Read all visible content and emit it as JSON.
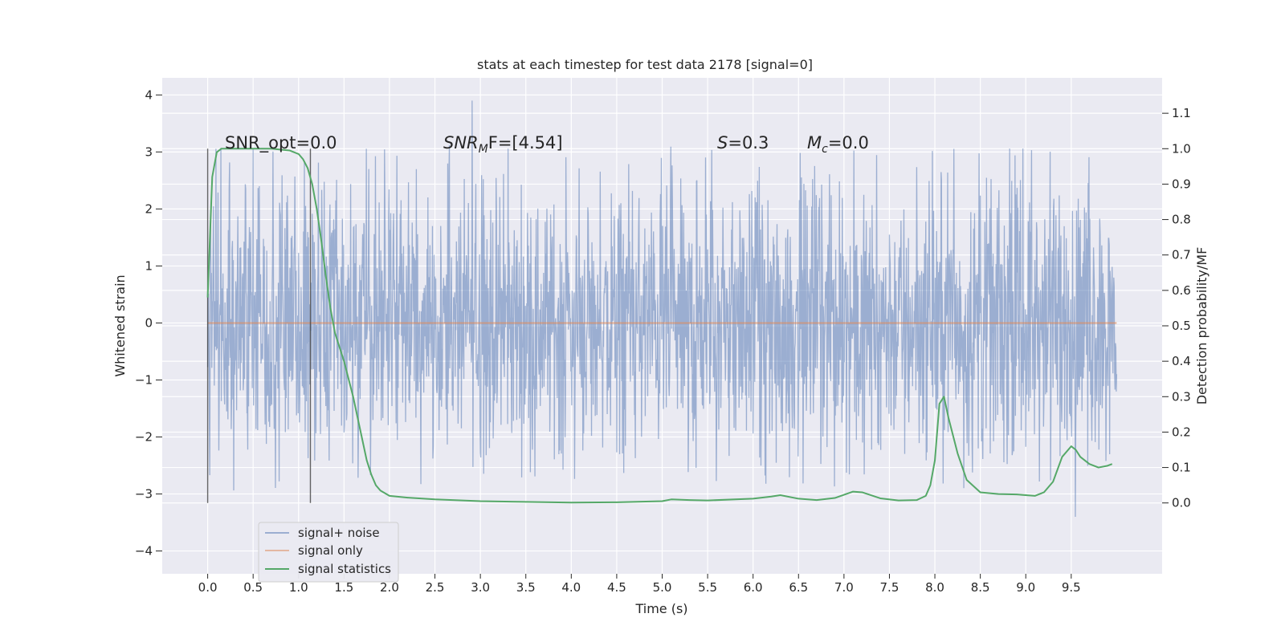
{
  "chart_data": {
    "type": "line",
    "title": "stats at each timestep for test data 2178 [signal=0]",
    "xlabel": "Time (s)",
    "ylabel_left": "Whitened strain",
    "ylabel_right": "Detection probability/MF",
    "xlim": [
      -0.5,
      10.5
    ],
    "ylim_left": [
      -4.4,
      4.3
    ],
    "ylim_right": [
      -0.2,
      1.2
    ],
    "x_ticks": [
      0.0,
      0.5,
      1.0,
      1.5,
      2.0,
      2.5,
      3.0,
      3.5,
      4.0,
      4.5,
      5.0,
      5.5,
      6.0,
      6.5,
      7.0,
      7.5,
      8.0,
      8.5,
      9.0,
      9.5
    ],
    "x_tick_labels": [
      "0.0",
      "0.5",
      "1.0",
      "1.5",
      "2.0",
      "2.5",
      "3.0",
      "3.5",
      "4.0",
      "4.5",
      "5.0",
      "5.5",
      "6.0",
      "6.5",
      "7.0",
      "7.5",
      "8.0",
      "8.5",
      "9.0",
      "9.5"
    ],
    "y_ticks_left": [
      4,
      3,
      2,
      1,
      0,
      -1,
      -2,
      -3,
      -4
    ],
    "y_tick_labels_left": [
      "4",
      "3",
      "2",
      "1",
      "0",
      "−1",
      "−2",
      "−3",
      "−4"
    ],
    "y_ticks_right": [
      1.1,
      1.0,
      0.9,
      0.8,
      0.7,
      0.6,
      0.5,
      0.4,
      0.3,
      0.2,
      0.1,
      0.0
    ],
    "y_tick_labels_right": [
      "1.1",
      "1.0",
      "0.9",
      "0.8",
      "0.7",
      "0.6",
      "0.5",
      "0.4",
      "0.3",
      "0.2",
      "0.1",
      "0.0"
    ],
    "grid": true,
    "legend_position": "lower-left",
    "annotations": {
      "snr_opt": "SNR_opt=0.0",
      "snr_mf_base": "SNR",
      "snr_mf_sub": "M",
      "snr_mf_rest": "F=[4.54]",
      "s_italic": "S",
      "s_rest": "=0.3",
      "mc_base": "M",
      "mc_sub": "c",
      "mc_rest": "=0.0"
    },
    "vertical_markers": [
      0.0,
      1.13
    ],
    "series": [
      {
        "name": "signal+ noise",
        "axis": "left",
        "color": "#4c72b0",
        "style": "dense-noise",
        "x_range": [
          0.0,
          10.0
        ],
        "envelope": {
          "typical_low": -1.6,
          "typical_high": 1.8,
          "max": 3.9,
          "min": -3.4
        }
      },
      {
        "name": "signal only",
        "axis": "left",
        "color": "#dd8452",
        "x": [
          0.0,
          10.0
        ],
        "y": [
          0.0,
          0.0
        ]
      },
      {
        "name": "signal statistics",
        "axis": "right",
        "color": "#55a868",
        "x": [
          0.0,
          0.05,
          0.1,
          0.15,
          0.2,
          0.3,
          0.5,
          0.7,
          0.9,
          1.0,
          1.05,
          1.1,
          1.15,
          1.2,
          1.25,
          1.3,
          1.35,
          1.4,
          1.5,
          1.6,
          1.7,
          1.75,
          1.8,
          1.85,
          1.9,
          2.0,
          2.2,
          2.5,
          3.0,
          3.5,
          4.0,
          4.5,
          5.0,
          5.1,
          5.3,
          5.5,
          6.0,
          6.2,
          6.3,
          6.5,
          6.7,
          6.9,
          7.1,
          7.2,
          7.4,
          7.6,
          7.8,
          7.9,
          7.95,
          8.0,
          8.05,
          8.1,
          8.15,
          8.25,
          8.35,
          8.5,
          8.7,
          8.9,
          9.1,
          9.2,
          9.3,
          9.4,
          9.5,
          9.55,
          9.6,
          9.7,
          9.8,
          9.9,
          9.95
        ],
        "y": [
          0.58,
          0.92,
          0.99,
          1.0,
          1.0,
          1.0,
          1.0,
          1.0,
          0.995,
          0.985,
          0.97,
          0.945,
          0.9,
          0.83,
          0.74,
          0.64,
          0.55,
          0.48,
          0.4,
          0.3,
          0.18,
          0.12,
          0.08,
          0.05,
          0.035,
          0.02,
          0.015,
          0.01,
          0.005,
          0.003,
          0.001,
          0.002,
          0.005,
          0.01,
          0.008,
          0.007,
          0.012,
          0.018,
          0.022,
          0.012,
          0.008,
          0.014,
          0.032,
          0.03,
          0.013,
          0.007,
          0.008,
          0.02,
          0.05,
          0.12,
          0.28,
          0.3,
          0.24,
          0.14,
          0.065,
          0.03,
          0.025,
          0.024,
          0.02,
          0.03,
          0.06,
          0.13,
          0.16,
          0.15,
          0.13,
          0.11,
          0.1,
          0.105,
          0.11
        ]
      }
    ]
  }
}
